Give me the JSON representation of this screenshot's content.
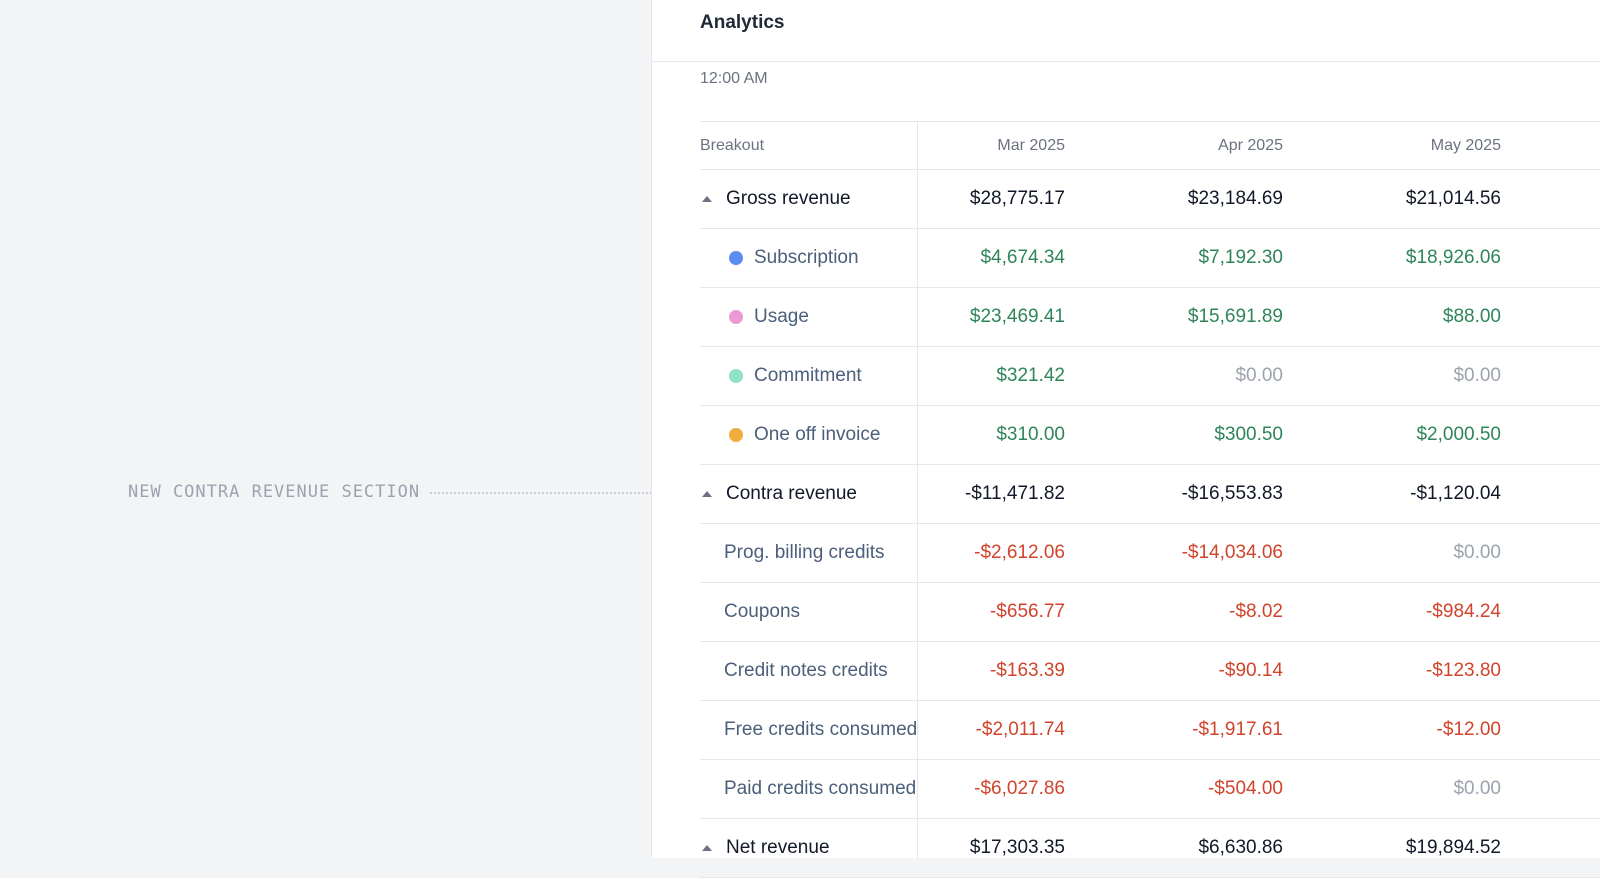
{
  "annotation": {
    "text": "NEW CONTRA REVENUE SECTION"
  },
  "panel": {
    "title": "Analytics",
    "timestamp": "12:00 AM"
  },
  "table": {
    "header": {
      "breakout": "Breakout",
      "columns": [
        "Mar 2025",
        "Apr 2025",
        "May 2025"
      ]
    },
    "rows": [
      {
        "label": "Gross revenue",
        "kind": "group",
        "values": [
          "$28,775.17",
          "$23,184.69",
          "$21,014.56"
        ],
        "tones": [
          "plain",
          "plain",
          "plain"
        ]
      },
      {
        "label": "Subscription",
        "kind": "dot",
        "dot_color": "#5b8def",
        "values": [
          "$4,674.34",
          "$7,192.30",
          "$18,926.06"
        ],
        "tones": [
          "pos",
          "pos",
          "pos"
        ]
      },
      {
        "label": "Usage",
        "kind": "dot",
        "dot_color": "#ec9ad6",
        "values": [
          "$23,469.41",
          "$15,691.89",
          "$88.00"
        ],
        "tones": [
          "pos",
          "pos",
          "pos"
        ]
      },
      {
        "label": "Commitment",
        "kind": "dot",
        "dot_color": "#8fe3c6",
        "values": [
          "$321.42",
          "$0.00",
          "$0.00"
        ],
        "tones": [
          "pos",
          "zero",
          "zero"
        ]
      },
      {
        "label": "One off invoice",
        "kind": "dot",
        "dot_color": "#f0ad3e",
        "values": [
          "$310.00",
          "$300.50",
          "$2,000.50"
        ],
        "tones": [
          "pos",
          "pos",
          "pos"
        ]
      },
      {
        "label": "Contra revenue",
        "kind": "group",
        "values": [
          "-$11,471.82",
          "-$16,553.83",
          "-$1,120.04"
        ],
        "tones": [
          "plain",
          "plain",
          "plain"
        ]
      },
      {
        "label": "Prog. billing credits",
        "kind": "sub",
        "values": [
          "-$2,612.06",
          "-$14,034.06",
          "$0.00"
        ],
        "tones": [
          "neg",
          "neg",
          "zero"
        ]
      },
      {
        "label": "Coupons",
        "kind": "sub",
        "values": [
          "-$656.77",
          "-$8.02",
          "-$984.24"
        ],
        "tones": [
          "neg",
          "neg",
          "neg"
        ]
      },
      {
        "label": "Credit notes credits",
        "kind": "sub",
        "values": [
          "-$163.39",
          "-$90.14",
          "-$123.80"
        ],
        "tones": [
          "neg",
          "neg",
          "neg"
        ]
      },
      {
        "label": "Free credits consumed",
        "kind": "sub",
        "values": [
          "-$2,011.74",
          "-$1,917.61",
          "-$12.00"
        ],
        "tones": [
          "neg",
          "neg",
          "neg"
        ]
      },
      {
        "label": "Paid credits consumed",
        "kind": "sub",
        "values": [
          "-$6,027.86",
          "-$504.00",
          "$0.00"
        ],
        "tones": [
          "neg",
          "neg",
          "zero"
        ]
      },
      {
        "label": "Net revenue",
        "kind": "group",
        "values": [
          "$17,303.35",
          "$6,630.86",
          "$19,894.52"
        ],
        "tones": [
          "plain",
          "plain",
          "plain"
        ]
      }
    ]
  },
  "colors": {
    "positive": "#2f855a",
    "negative": "#d1432b",
    "zero": "#9ca3af"
  }
}
